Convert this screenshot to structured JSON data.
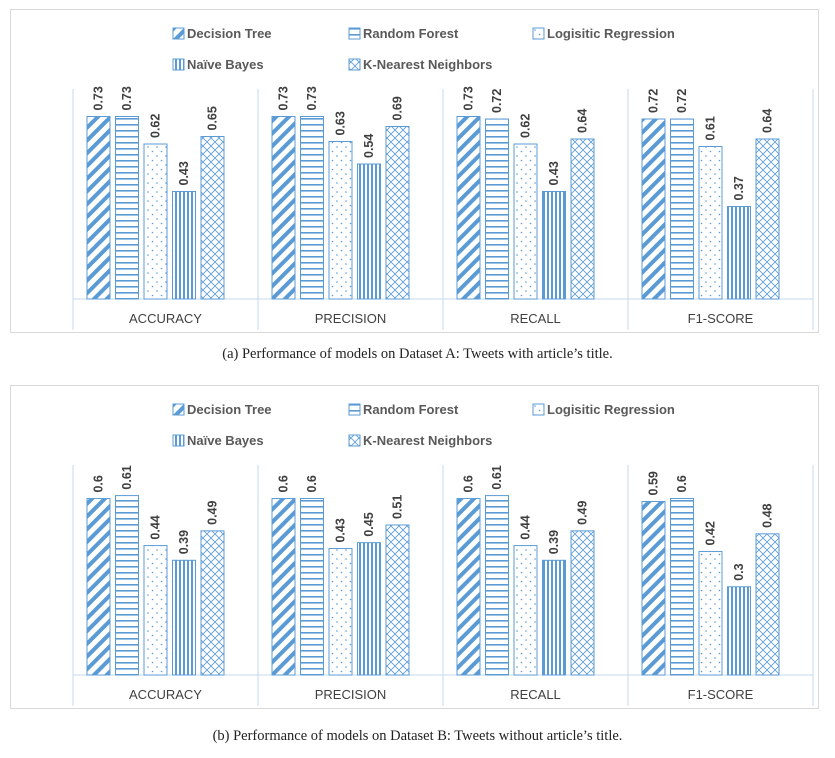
{
  "chart_data": [
    {
      "type": "bar",
      "categories": [
        "ACCURACY",
        "PRECISION",
        "RECALL",
        "F1-SCORE"
      ],
      "series": [
        {
          "name": "Decision Tree",
          "values": [
            0.73,
            0.73,
            0.73,
            0.72
          ],
          "pattern": "diag"
        },
        {
          "name": "Random Forest",
          "values": [
            0.73,
            0.73,
            0.72,
            0.72
          ],
          "pattern": "hlines"
        },
        {
          "name": "Logisitic Regression",
          "values": [
            0.62,
            0.63,
            0.62,
            0.61
          ],
          "pattern": "dots"
        },
        {
          "name": "Naïve Bayes",
          "values": [
            0.43,
            0.54,
            0.43,
            0.37
          ],
          "pattern": "vlines"
        },
        {
          "name": "K-Nearest Neighbors",
          "values": [
            0.65,
            0.69,
            0.64,
            0.64
          ],
          "pattern": "cross"
        }
      ],
      "ylim": [
        0,
        0.8
      ],
      "grid": false,
      "legend_position": "top",
      "data_labels": true
    },
    {
      "type": "bar",
      "categories": [
        "ACCURACY",
        "PRECISION",
        "RECALL",
        "F1-SCORE"
      ],
      "series": [
        {
          "name": "Decision Tree",
          "values": [
            0.6,
            0.6,
            0.6,
            0.59
          ],
          "pattern": "diag"
        },
        {
          "name": "Random Forest",
          "values": [
            0.61,
            0.6,
            0.61,
            0.6
          ],
          "pattern": "hlines"
        },
        {
          "name": "Logisitic Regression",
          "values": [
            0.44,
            0.43,
            0.44,
            0.42
          ],
          "pattern": "dots"
        },
        {
          "name": "Naïve Bayes",
          "values": [
            0.39,
            0.45,
            0.39,
            0.3
          ],
          "pattern": "vlines"
        },
        {
          "name": "K-Nearest Neighbors",
          "values": [
            0.49,
            0.51,
            0.49,
            0.48
          ],
          "pattern": "cross"
        }
      ],
      "ylim": [
        0,
        0.68
      ],
      "grid": false,
      "legend_position": "top",
      "data_labels": true
    }
  ],
  "captions": [
    "(a) Performance of models on Dataset A: Tweets with article’s title.",
    "(b) Performance of models on Dataset B: Tweets without article’s title."
  ],
  "colors": {
    "bar_stroke": "#5b9bd5",
    "pattern": "#5b9bd5",
    "separator": "#c5d9ef",
    "text": "#404040"
  }
}
